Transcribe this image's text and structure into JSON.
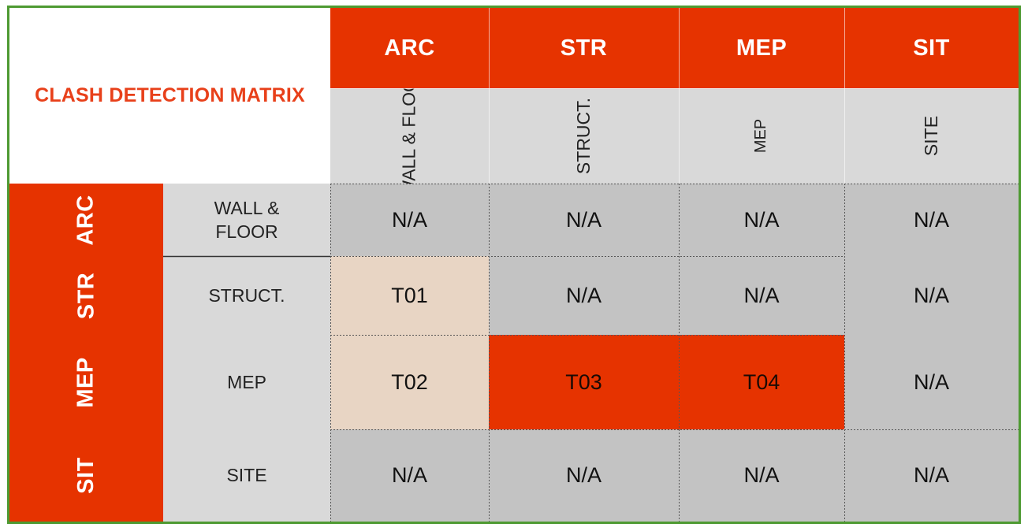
{
  "title": "CLASH DETECTION MATRIX",
  "column_groups": [
    "ARC",
    "STR",
    "MEP",
    "SIT"
  ],
  "column_subheaders": [
    "WALL & FLOOR",
    "STRUCT.",
    "MEP",
    "SITE"
  ],
  "row_groups": [
    "ARC",
    "STR",
    "MEP",
    "SIT"
  ],
  "row_subheaders": [
    "WALL &\nFLOOR",
    "STRUCT.",
    "MEP",
    "SITE"
  ],
  "cells": [
    [
      "N/A",
      "N/A",
      "N/A",
      "N/A"
    ],
    [
      "T01",
      "N/A",
      "N/A",
      "N/A"
    ],
    [
      "T02",
      "T03",
      "T04",
      "N/A"
    ],
    [
      "N/A",
      "N/A",
      "N/A",
      "N/A"
    ]
  ],
  "colors": {
    "header_red": "#e63300",
    "title_red": "#e8401a",
    "subheader_gray": "#d9d9d9",
    "value_gray": "#c3c3c3",
    "peach": "#e8d5c4",
    "frame_green": "#4e9a32"
  }
}
